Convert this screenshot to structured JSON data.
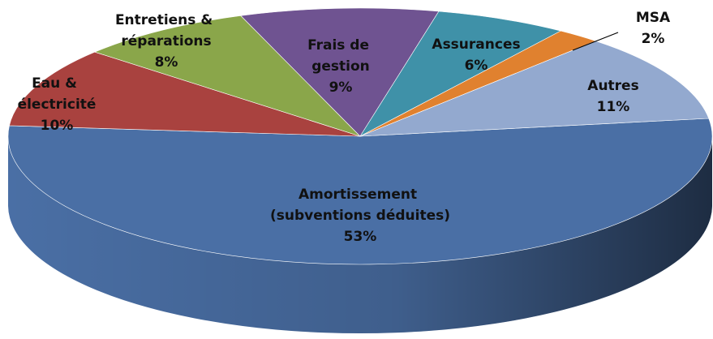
{
  "chart_data": {
    "type": "pie",
    "categories": [
      "Amortissement (subventions déduites)",
      "Eau & électricité",
      "Entretiens & réparations",
      "Frais de gestion",
      "Assurances",
      "MSA",
      "Autres"
    ],
    "values": [
      53,
      10,
      8,
      9,
      6,
      2,
      11
    ],
    "value_labels": [
      "53%",
      "10%",
      "8%",
      "9%",
      "6%",
      "2%",
      "11%"
    ],
    "colors": [
      "#4a6fa5",
      "#a9423f",
      "#8aa64a",
      "#6f5391",
      "#3f91a8",
      "#e0812f",
      "#93a9cf"
    ]
  }
}
